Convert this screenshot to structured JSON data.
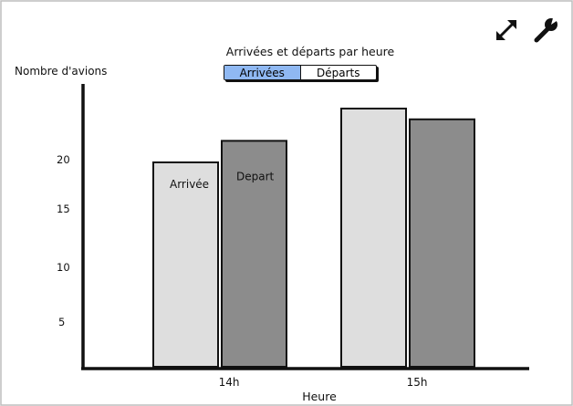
{
  "toggle": {
    "options": [
      "Arrivées",
      "Départs"
    ],
    "selected": 0
  },
  "toolbar": {
    "expand_icon": "expand-arrows-icon",
    "settings_icon": "wrench-icon"
  },
  "chart_data": {
    "type": "bar",
    "title": "Arrivées et départs par heure",
    "ylabel": "Nombre d'avions",
    "xlabel": "Heure",
    "categories": [
      "14h",
      "15h"
    ],
    "y_ticks": [
      "5",
      "10",
      "15",
      "20"
    ],
    "ylim": [
      0,
      24
    ],
    "series": [
      {
        "color": "#dedede",
        "values": [
          19,
          24
        ],
        "labels": [
          "Arrivée",
          ""
        ]
      },
      {
        "color": "#8c8c8c",
        "values": [
          21,
          23
        ],
        "labels": [
          "Depart",
          ""
        ]
      }
    ],
    "grid": false
  }
}
